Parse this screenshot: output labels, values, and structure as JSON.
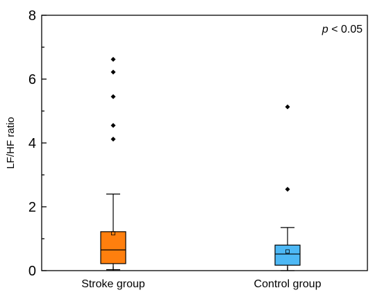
{
  "chart_data": {
    "type": "box",
    "title": "",
    "xlabel": "",
    "ylabel": "LF/HF ratio",
    "ylim": [
      0,
      8
    ],
    "y_ticks": [
      "0",
      "2",
      "4",
      "6",
      "8"
    ],
    "grid": false,
    "annotation": {
      "italic_part": "p",
      "rest": " < 0.05"
    },
    "categories": [
      "Stroke group",
      "Control group"
    ],
    "boxes": [
      {
        "name": "Stroke group",
        "color": "#ff7f0e",
        "whisker_low": 0.03,
        "q1": 0.22,
        "median": 0.65,
        "q3": 1.22,
        "whisker_high": 2.4,
        "mean": 1.17,
        "outliers": [
          4.12,
          4.55,
          5.45,
          6.22,
          6.62
        ]
      },
      {
        "name": "Control group",
        "color": "#4db8f5",
        "whisker_low": 0.0,
        "q1": 0.17,
        "median": 0.52,
        "q3": 0.8,
        "whisker_high": 1.35,
        "mean": 0.6,
        "outliers": [
          2.55,
          5.13
        ]
      }
    ]
  }
}
